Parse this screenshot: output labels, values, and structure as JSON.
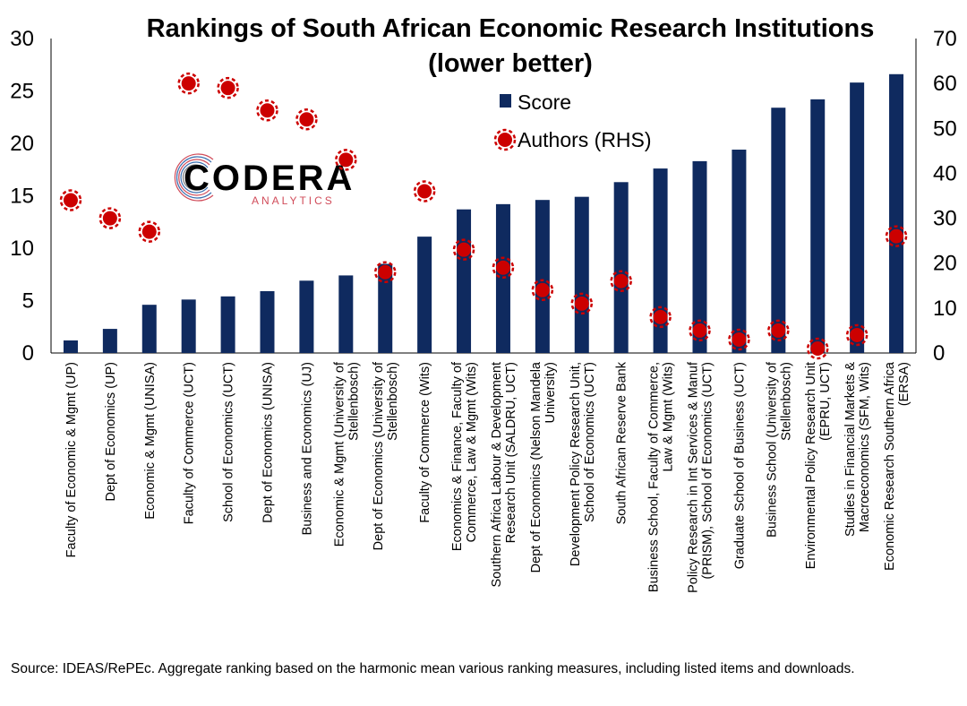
{
  "chart_data": {
    "type": "bar",
    "title": "Rankings of South African Economic Research Institutions",
    "subtitle": "(lower better)",
    "categories": [
      "Faculty of Economic & Mgmt (UP)",
      "Dept of Economics (UP)",
      "Economic & Mgmt (UNISA)",
      "Faculty of Commerce (UCT)",
      "School of Economics  (UCT)",
      "Dept of Economics (UNISA)",
      "Business and Economics (UJ)",
      "Economic & Mgmt (University of Stellenbosch)",
      "Dept of Economics (University of Stellenbosch)",
      "Faculty of Commerce (Wits)",
      "Economics & Finance, Faculty of Commerce, Law & Mgmt (Wits)",
      "Southern Africa Labour & Development Research Unit (SALDRU, UCT)",
      "Dept of Economics (Nelson Mandela University)",
      "Development Policy Research Unit, School of Economics (UCT)",
      "South African Reserve Bank",
      "Business School, Faculty of Commerce, Law & Mgmt (Wits)",
      "Policy Research in Int Services & Manuf (PRISM), School of Economics (UCT)",
      "Graduate School of Business (UCT)",
      "Business School (University of Stellenbosch)",
      "Environmental Policy Research Unit (EPRU, UCT)",
      "Studies in Financial Markets & Macroeconomics (SFM, Wits)",
      "Economic Research Southern Africa (ERSA)"
    ],
    "category_lines": [
      [
        "Faculty of Economic & Mgmt (UP)"
      ],
      [
        "Dept of Economics (UP)"
      ],
      [
        "Economic & Mgmt (UNISA)"
      ],
      [
        "Faculty of Commerce (UCT)"
      ],
      [
        "School of Economics  (UCT)"
      ],
      [
        "Dept of Economics (UNISA)"
      ],
      [
        "Business and Economics (UJ)"
      ],
      [
        "Economic & Mgmt (University of",
        "Stellenbosch)"
      ],
      [
        "Dept of Economics (University of",
        "Stellenbosch)"
      ],
      [
        "Faculty of Commerce (Wits)"
      ],
      [
        "Economics & Finance, Faculty of",
        "Commerce, Law & Mgmt (Wits)"
      ],
      [
        "Southern Africa Labour & Development",
        "Research Unit (SALDRU, UCT)"
      ],
      [
        "Dept of Economics (Nelson Mandela",
        "University)"
      ],
      [
        "Development Policy Research Unit,",
        "School of Economics (UCT)"
      ],
      [
        "South African Reserve Bank"
      ],
      [
        "Business School, Faculty of Commerce,",
        "Law & Mgmt (Wits)"
      ],
      [
        "Policy Research in Int Services & Manuf",
        "(PRISM), School of Economics (UCT)"
      ],
      [
        "Graduate School of Business (UCT)"
      ],
      [
        "Business School (University of",
        "Stellenbosch)"
      ],
      [
        "Environmental Policy Research Unit",
        "(EPRU, UCT)"
      ],
      [
        "Studies in Financial Markets &",
        "Macroeconomics (SFM, Wits)"
      ],
      [
        "Economic Research Southern Africa",
        "(ERSA)"
      ]
    ],
    "series": [
      {
        "name": "Score",
        "type": "bar",
        "axis": "left",
        "color": "#0f2a5f",
        "values": [
          1.2,
          2.3,
          4.6,
          5.1,
          5.4,
          5.9,
          6.9,
          7.4,
          8.5,
          11.1,
          13.7,
          14.2,
          14.6,
          14.9,
          16.3,
          17.6,
          18.3,
          19.4,
          23.4,
          24.2,
          25.8,
          26.6
        ]
      },
      {
        "name": "Authors (RHS)",
        "type": "scatter",
        "axis": "right",
        "color": "#cc0000",
        "values": [
          34,
          30,
          27,
          60,
          59,
          54,
          52,
          43,
          18,
          36,
          23,
          19,
          14,
          11,
          16,
          8,
          5,
          3,
          5,
          1,
          4,
          26
        ]
      }
    ],
    "y_left": {
      "min": 0,
      "max": 30,
      "ticks": [
        0,
        5,
        10,
        15,
        20,
        25,
        30
      ]
    },
    "y_right": {
      "min": 0,
      "max": 70,
      "ticks": [
        0,
        10,
        20,
        30,
        40,
        50,
        60,
        70
      ]
    },
    "xlabel": "",
    "ylabel": "",
    "grid": false,
    "legend": "top-center"
  },
  "logo": {
    "name": "CODERA",
    "sub": "ANALYTICS"
  },
  "source": "Source: IDEAS/RePEc. Aggregate ranking based on the harmonic mean various ranking measures, including listed items and downloads."
}
